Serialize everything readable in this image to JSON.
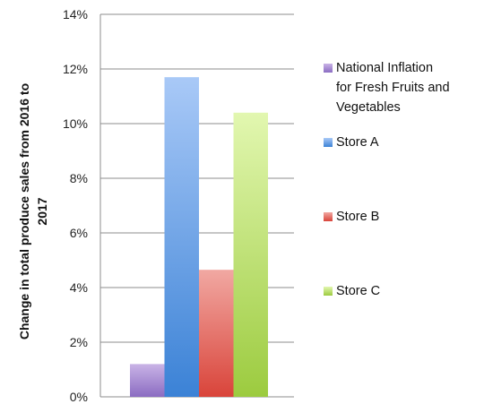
{
  "chart_data": {
    "type": "bar",
    "ylabel": "Change in total produce sales from 2016 to 2017",
    "ylabel_lines": [
      "Change in total produce sales from 2016 to",
      "2017"
    ],
    "ylim": [
      0,
      14
    ],
    "yticks": [
      0,
      2,
      4,
      6,
      8,
      10,
      12,
      14
    ],
    "ytick_labels": [
      "0%",
      "2%",
      "4%",
      "6%",
      "8%",
      "10%",
      "12%",
      "14%"
    ],
    "grid": true,
    "legend_position": "right",
    "series": [
      {
        "name": "National Inflation for Fresh Fruits and Vegetables",
        "legend_lines": [
          "National Inflation",
          "for Fresh Fruits and",
          "Vegetables"
        ],
        "value": 1.2,
        "color_top": "#c9b3e6",
        "color_bottom": "#8b6cc2"
      },
      {
        "name": "Store A",
        "legend_lines": [
          "Store A"
        ],
        "value": 11.7,
        "color_top": "#a9c9f7",
        "color_bottom": "#3b82d6"
      },
      {
        "name": "Store B",
        "legend_lines": [
          "Store B"
        ],
        "value": 4.65,
        "color_top": "#f1a8a2",
        "color_bottom": "#d9443a"
      },
      {
        "name": "Store C",
        "legend_lines": [
          "Store C"
        ],
        "value": 10.4,
        "color_top": "#e2f7b0",
        "color_bottom": "#9ccb3f"
      }
    ]
  }
}
